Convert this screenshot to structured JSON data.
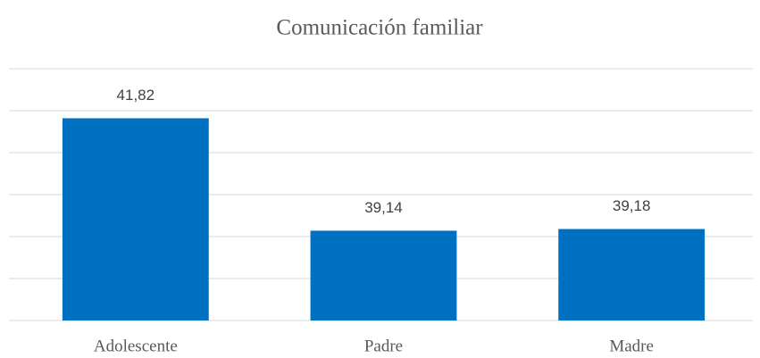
{
  "chart_data": {
    "type": "bar",
    "title": "Comunicación familiar",
    "categories": [
      "Adolescente",
      "Padre",
      "Madre"
    ],
    "values": [
      41.82,
      39.14,
      39.18
    ],
    "value_labels": [
      "41,82",
      "39,14",
      "39,18"
    ],
    "color": "#0070c0",
    "ylim": [
      37,
      43
    ],
    "yticks": [
      37,
      38,
      39,
      40,
      41,
      42,
      43
    ],
    "grid": true
  }
}
